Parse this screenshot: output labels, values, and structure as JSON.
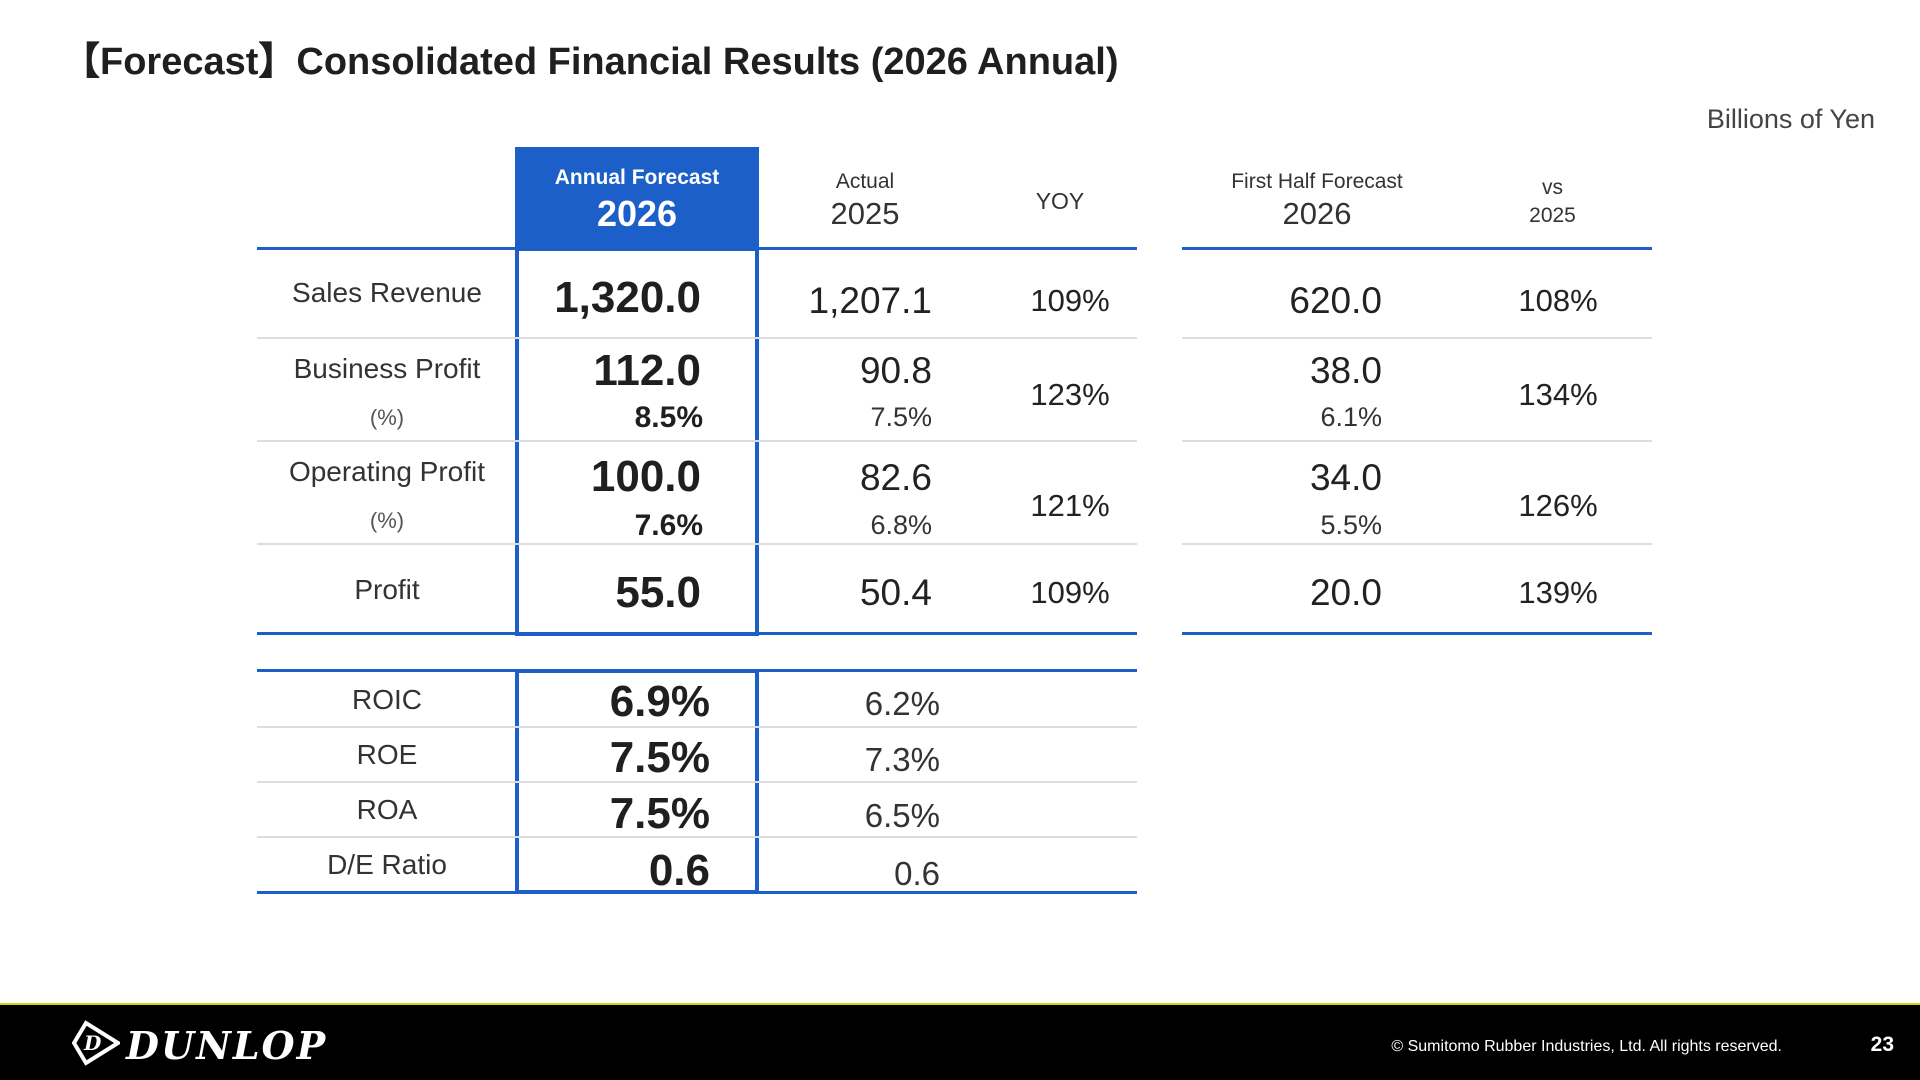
{
  "title": "【Forecast】Consolidated Financial Results (2026 Annual)",
  "unit_note": "Billions of Yen",
  "columns": {
    "forecast": {
      "label": "Annual Forecast",
      "year": "2026"
    },
    "actual": {
      "label": "Actual",
      "year": "2025"
    },
    "yoy": {
      "label": "YOY"
    },
    "first_half": {
      "label": "First Half Forecast",
      "year": "2026"
    },
    "vs": {
      "label": "vs",
      "year": "2025"
    }
  },
  "rows": [
    {
      "label": "Sales Revenue",
      "forecast": "1,320.0",
      "actual": "1,207.1",
      "yoy": "109%",
      "first_half": "620.0",
      "vs": "108%"
    },
    {
      "label": "Business Profit",
      "sub": "(%)",
      "forecast": "112.0",
      "forecast_pct": "8.5%",
      "actual": "90.8",
      "actual_pct": "7.5%",
      "yoy": "123%",
      "first_half": "38.0",
      "first_half_pct": "6.1%",
      "vs": "134%"
    },
    {
      "label": "Operating Profit",
      "sub": "(%)",
      "forecast": "100.0",
      "forecast_pct": "7.6%",
      "actual": "82.6",
      "actual_pct": "6.8%",
      "yoy": "121%",
      "first_half": "34.0",
      "first_half_pct": "5.5%",
      "vs": "126%"
    },
    {
      "label": "Profit",
      "forecast": "55.0",
      "actual": "50.4",
      "yoy": "109%",
      "first_half": "20.0",
      "vs": "139%"
    }
  ],
  "ratios": [
    {
      "label": "ROIC",
      "forecast": "6.9%",
      "actual": "6.2%"
    },
    {
      "label": "ROE",
      "forecast": "7.5%",
      "actual": "7.3%"
    },
    {
      "label": "ROA",
      "forecast": "7.5%",
      "actual": "6.5%"
    },
    {
      "label": "D/E Ratio",
      "forecast": "0.6",
      "actual": "0.6"
    }
  ],
  "footer": {
    "logo_text": "DUNLOP",
    "copyright": "© Sumitomo Rubber Industries, Ltd. All rights reserved.",
    "page_number": "23"
  },
  "colors": {
    "accent": "#1d5fc8",
    "footer_bg": "#000000",
    "footer_rule": "#d9d100"
  }
}
